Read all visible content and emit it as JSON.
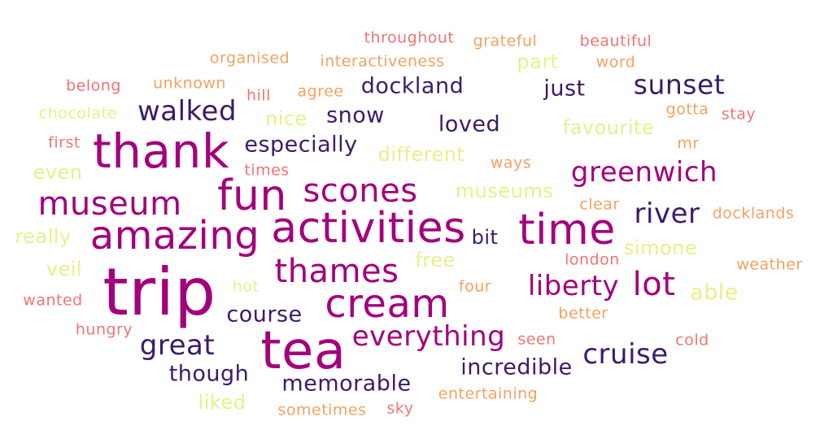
{
  "words": {
    "throughout": "throughout",
    "grateful": "grateful",
    "beautiful": "beautiful",
    "organised": "organised",
    "interactiveness": "interactiveness",
    "part": "part",
    "word": "word",
    "belong": "belong",
    "unknown": "unknown",
    "dockland": "dockland",
    "just": "just",
    "sunset": "sunset",
    "hill": "hill",
    "agree": "agree",
    "chocolate": "chocolate",
    "walked": "walked",
    "nice": "nice",
    "snow": "snow",
    "loved": "loved",
    "gotta": "gotta",
    "stay": "stay",
    "first": "first",
    "thank": "thank",
    "especially": "especially",
    "favourite": "favourite",
    "mr": "mr",
    "even": "even",
    "different": "different",
    "ways": "ways",
    "greenwich": "greenwich",
    "times": "times",
    "museum": "museum",
    "fun": "fun",
    "scones": "scones",
    "museums": "museums",
    "clear": "clear",
    "river": "river",
    "docklands": "docklands",
    "really": "really",
    "amazing": "amazing",
    "activities": "activities",
    "time": "time",
    "bit": "bit",
    "simone": "simone",
    "veil": "veil",
    "free": "free",
    "london": "london",
    "weather": "weather",
    "thames": "thames",
    "trip": "trip",
    "hot": "hot",
    "four": "four",
    "liberty": "liberty",
    "lot": "lot",
    "able": "able",
    "wanted": "wanted",
    "cream": "cream",
    "course": "course",
    "better": "better",
    "hungry": "hungry",
    "seen": "seen",
    "cold": "cold",
    "everything": "everything",
    "great": "great",
    "tea": "tea",
    "cruise": "cruise",
    "though": "though",
    "incredible": "incredible",
    "memorable": "memorable",
    "liked": "liked",
    "entertaining": "entertaining",
    "sometimes": "sometimes",
    "sky": "sky"
  },
  "colors": {
    "magenta": "#a3007c",
    "indigo": "#3c1a6a",
    "yellow": "#e8ef8c",
    "orange": "#f4a261",
    "coral": "#f07575"
  }
}
